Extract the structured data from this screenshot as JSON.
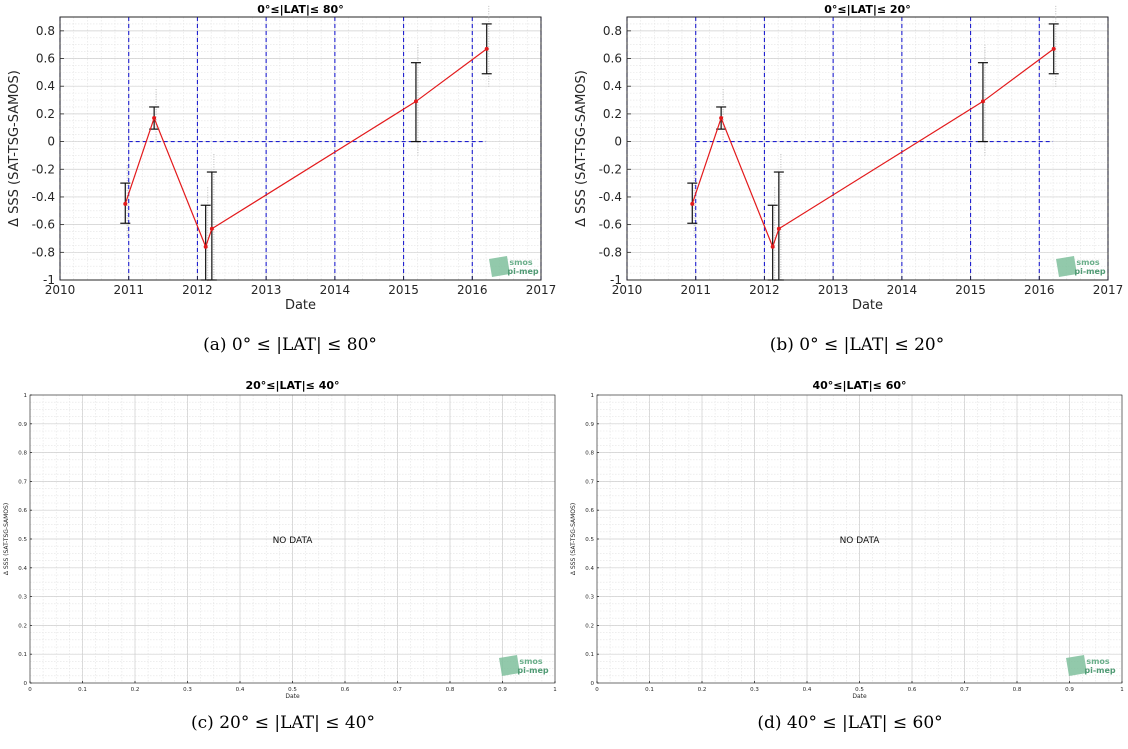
{
  "chart_data": [
    {
      "id": "a",
      "type": "line",
      "title": "0°≤|LAT|≤ 80°",
      "xlabel": "Date",
      "ylabel": "Δ SSS (SAT-TSG-SAMOS)",
      "xlim": [
        2010,
        2017
      ],
      "ylim": [
        -1,
        0.9
      ],
      "xticks": [
        "2010",
        "2011",
        "2012",
        "2013",
        "2014",
        "2015",
        "2016",
        "2017"
      ],
      "yticks": [
        "-1",
        "-0.8",
        "-0.6",
        "-0.4",
        "-0.2",
        "0",
        "0.2",
        "0.4",
        "0.6",
        "0.8"
      ],
      "grid": true,
      "no_data": false,
      "series": [
        {
          "x": [
            2010.95,
            2011.37,
            2012.12,
            2012.21,
            2015.18,
            2016.21
          ],
          "y": [
            -0.45,
            0.17,
            -0.76,
            -0.63,
            0.29,
            0.67
          ],
          "err_low": [
            -0.59,
            0.09,
            -1.0,
            -1.0,
            0.0,
            0.49
          ],
          "err_high": [
            -0.3,
            0.25,
            -0.46,
            -0.22,
            0.57,
            0.85
          ],
          "color": "#e31a1c"
        }
      ],
      "reference_lines": {
        "vertical": [
          2011,
          2012,
          2013,
          2014,
          2015,
          2016
        ],
        "horizontal": 0,
        "horizontal_range": [
          2011,
          2016.2
        ],
        "color": "#1f1fd0"
      },
      "logo": {
        "line1": "smos",
        "line2": "pi-mep"
      },
      "caption": "(a) 0° ≤ |LAT| ≤ 80°"
    },
    {
      "id": "b",
      "type": "line",
      "title": "0°≤|LAT|≤ 20°",
      "xlabel": "Date",
      "ylabel": "Δ SSS (SAT-TSG-SAMOS)",
      "xlim": [
        2010,
        2017
      ],
      "ylim": [
        -1,
        0.9
      ],
      "xticks": [
        "2010",
        "2011",
        "2012",
        "2013",
        "2014",
        "2015",
        "2016",
        "2017"
      ],
      "yticks": [
        "-1",
        "-0.8",
        "-0.6",
        "-0.4",
        "-0.2",
        "0",
        "0.2",
        "0.4",
        "0.6",
        "0.8"
      ],
      "grid": true,
      "no_data": false,
      "series": [
        {
          "x": [
            2010.95,
            2011.37,
            2012.12,
            2012.21,
            2015.18,
            2016.21
          ],
          "y": [
            -0.45,
            0.17,
            -0.76,
            -0.63,
            0.29,
            0.67
          ],
          "err_low": [
            -0.59,
            0.09,
            -1.0,
            -1.0,
            0.0,
            0.49
          ],
          "err_high": [
            -0.3,
            0.25,
            -0.46,
            -0.22,
            0.57,
            0.85
          ],
          "color": "#e31a1c"
        }
      ],
      "reference_lines": {
        "vertical": [
          2011,
          2012,
          2013,
          2014,
          2015,
          2016
        ],
        "horizontal": 0,
        "horizontal_range": [
          2011,
          2016.2
        ],
        "color": "#1f1fd0"
      },
      "logo": {
        "line1": "smos",
        "line2": "pi-mep"
      },
      "caption": "(b) 0° ≤ |LAT| ≤ 20°"
    },
    {
      "id": "c",
      "type": "line",
      "title": "20°≤|LAT|≤ 40°",
      "xlabel": "Date",
      "ylabel": "Δ SSS (SAT-TSG-SAMOS)",
      "xlim": [
        0,
        1
      ],
      "ylim": [
        0,
        1
      ],
      "xticks": [
        "0",
        "0.1",
        "0.2",
        "0.3",
        "0.4",
        "0.5",
        "0.6",
        "0.7",
        "0.8",
        "0.9",
        "1"
      ],
      "yticks": [
        "0",
        "0.1",
        "0.2",
        "0.3",
        "0.4",
        "0.5",
        "0.6",
        "0.7",
        "0.8",
        "0.9",
        "1"
      ],
      "grid": true,
      "no_data": true,
      "message": "NO DATA",
      "series": [],
      "logo": {
        "line1": "smos",
        "line2": "pi-mep"
      },
      "caption": "(c) 20° ≤ |LAT| ≤ 40°"
    },
    {
      "id": "d",
      "type": "line",
      "title": "40°≤|LAT|≤ 60°",
      "xlabel": "Date",
      "ylabel": "Δ SSS (SAT-TSG-SAMOS)",
      "xlim": [
        0,
        1
      ],
      "ylim": [
        0,
        1
      ],
      "xticks": [
        "0",
        "0.1",
        "0.2",
        "0.3",
        "0.4",
        "0.5",
        "0.6",
        "0.7",
        "0.8",
        "0.9",
        "1"
      ],
      "yticks": [
        "0",
        "0.1",
        "0.2",
        "0.3",
        "0.4",
        "0.5",
        "0.6",
        "0.7",
        "0.8",
        "0.9",
        "1"
      ],
      "grid": true,
      "no_data": true,
      "message": "NO DATA",
      "series": [],
      "logo": {
        "line1": "smos",
        "line2": "pi-mep"
      },
      "caption": "(d) 40° ≤ |LAT| ≤ 60°"
    }
  ]
}
